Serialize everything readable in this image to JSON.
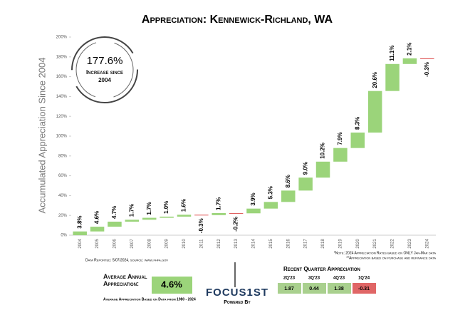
{
  "chart_data": {
    "type": "waterfall",
    "title": "Appreciation: Kennewick-Richland, WA",
    "y_label": "Accumulated Appreciation Since 2004",
    "categories": [
      "2004",
      "2005",
      "2006",
      "2007",
      "2008",
      "2009",
      "2010",
      "2011",
      "2012",
      "2013",
      "2014",
      "2015",
      "2016",
      "2017",
      "2018",
      "2019",
      "2020",
      "2021",
      "2022",
      "2023",
      "2024"
    ],
    "values": [
      3.8,
      4.6,
      4.7,
      1.7,
      1.7,
      1.0,
      1.6,
      -0.3,
      1.7,
      -0.2,
      3.9,
      5.3,
      8.6,
      9.0,
      10.2,
      7.9,
      8.3,
      20.6,
      11.1,
      2.1,
      -0.3
    ],
    "value_labels": [
      "3.8%",
      "4.6%",
      "4.7%",
      "1.7%",
      "1.7%",
      "1.0%",
      "1.6%",
      "-0.3%",
      "1.7%",
      "-0.2%",
      "3.9%",
      "5.3%",
      "8.6%",
      "9.0%",
      "10.2%",
      "7.9%",
      "8.3%",
      "20.6%",
      "11.1%",
      "2.1%",
      "-0.3%"
    ],
    "color": "#9bd47a",
    "negative_color": "#e05a5a",
    "ylim": [
      0,
      200
    ],
    "yticks": [
      {
        "value": 0,
        "label": "0%"
      },
      {
        "value": 20,
        "label": "20%"
      },
      {
        "value": 40,
        "label": "40%"
      },
      {
        "value": 60,
        "label": "60%"
      },
      {
        "value": 80,
        "label": "80%"
      },
      {
        "value": 100,
        "label": "100%"
      },
      {
        "value": 120,
        "label": "120%"
      },
      {
        "value": 140,
        "label": "140%"
      },
      {
        "value": 160,
        "label": "160%"
      },
      {
        "value": 180,
        "label": "180%"
      },
      {
        "value": 200,
        "label": "200%"
      }
    ],
    "grid": false,
    "annotation": {
      "value": "177.6%",
      "text": "Increase since 2004"
    }
  },
  "footer": {
    "source": "Data Reported: 5/07/2024, source: www.fhfa.gov",
    "note1": "*Note: 2024 Appreciation Rates based on ONLY Jan-Mar data",
    "note2": "**Appreciation based on purchase and refinance data"
  },
  "average": {
    "label": "Average Annual Appreciation:",
    "value": "4.6%",
    "note": "Average Appreciation Based on Data from 1980 - 2024"
  },
  "logo": {
    "name": "FOCUS1ST",
    "tagline": "Powered By"
  },
  "quarters": {
    "title": "Recent Quarter Appreciation",
    "items": [
      {
        "label": "2Q'23",
        "value": 1.87
      },
      {
        "label": "3Q'23",
        "value": 0.44
      },
      {
        "label": "4Q'23",
        "value": 1.38
      },
      {
        "label": "1Q'24",
        "value": -0.31
      }
    ]
  }
}
